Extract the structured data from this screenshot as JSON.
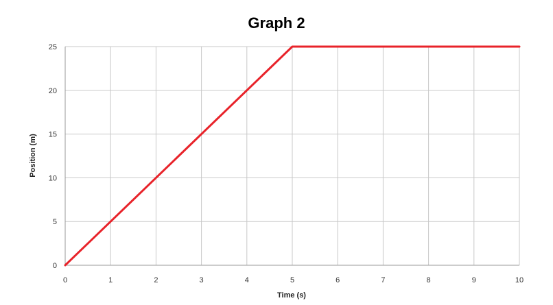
{
  "chart_data": {
    "type": "line",
    "title": "Graph 2",
    "xlabel": "Time (s)",
    "ylabel": "Position (m)",
    "x_ticks": [
      "0",
      "1",
      "2",
      "3",
      "4",
      "5",
      "6",
      "7",
      "8",
      "9",
      "10"
    ],
    "y_ticks": [
      "0",
      "5",
      "10",
      "15",
      "20",
      "25"
    ],
    "xlim": [
      0,
      10
    ],
    "ylim": [
      0,
      25
    ],
    "grid": true,
    "legend": "none",
    "series": [
      {
        "color": "#e8232a",
        "x": [
          0,
          5,
          10
        ],
        "y": [
          0,
          25,
          25
        ]
      }
    ]
  }
}
